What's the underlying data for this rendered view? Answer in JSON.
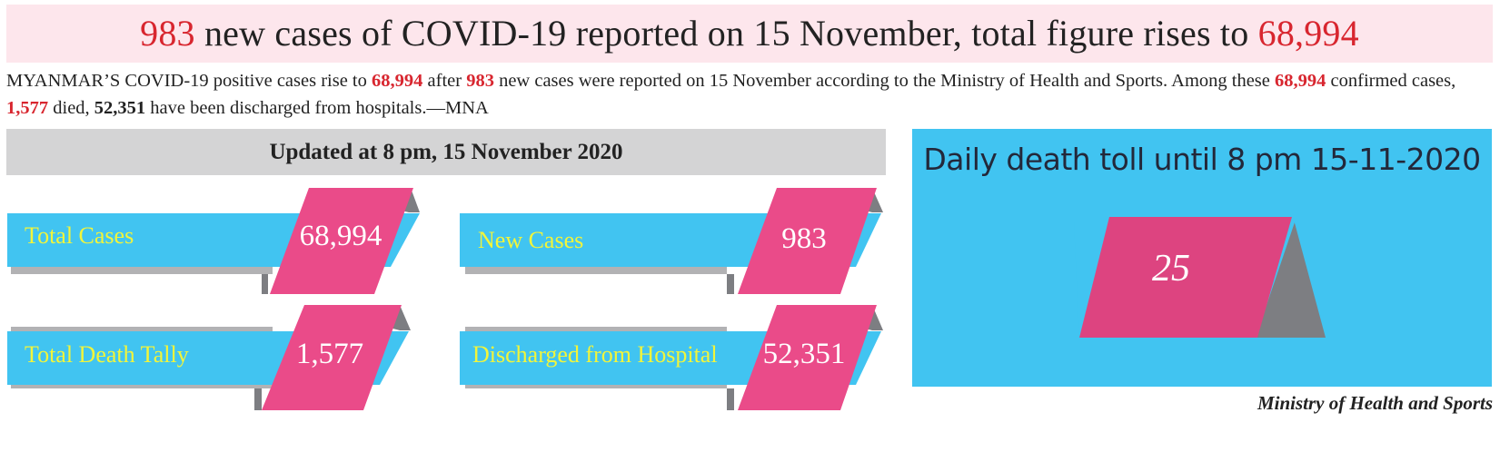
{
  "headline": {
    "num1": "983",
    "text1": " new cases of COVID-19 reported on 15 November, total figure rises to ",
    "num2": "68,994"
  },
  "lede": {
    "t1": "MYANMAR’S COVID-19 positive cases rise to ",
    "n1": "68,994",
    "t2": " after ",
    "n2": "983",
    "t3": " new cases were reported on 15 November according to the Ministry of Health and Sports. Among these ",
    "n3": "68,994",
    "t4": " confirmed cases, ",
    "n4": "1,577",
    "t5": " died, ",
    "n5": "52,351",
    "t6": " have been discharged from hospitals.—MNA"
  },
  "updated_label": "Updated at 8 pm, 15 November 2020",
  "stats": {
    "total_cases": {
      "label": "Total Cases",
      "value": "68,994"
    },
    "new_cases": {
      "label": "New Cases",
      "value": "983"
    },
    "total_deaths": {
      "label": "Total Death Tally",
      "value": "1,577"
    },
    "discharged": {
      "label": "Discharged from Hospital",
      "value": "52,351"
    }
  },
  "daily_death": {
    "title": "Daily death toll until 8 pm 15-11-2020",
    "value": "25"
  },
  "source": "Ministry of Health and Sports",
  "colors": {
    "pink": "#ea4b89",
    "cyan": "#41c4f1",
    "gray": "#b2b2b4",
    "dark_gray": "#7d7e82",
    "label_yellow": "#f2f53a",
    "accent_red": "#d8262f",
    "headline_bg": "#fde6ec"
  }
}
